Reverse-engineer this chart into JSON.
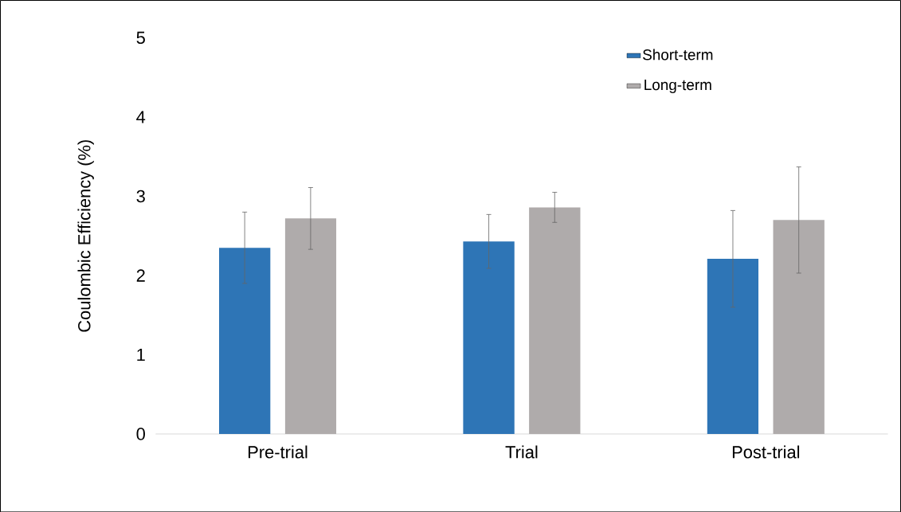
{
  "chart_data": {
    "type": "bar",
    "ylabel": "Coulombic Efficiency (%)",
    "categories": [
      "Pre-trial",
      "Trial",
      "Post-trial"
    ],
    "series": [
      {
        "name": "Short-term",
        "color": "#2e75b6",
        "values": [
          2.35,
          2.43,
          2.21
        ],
        "errors": [
          0.45,
          0.34,
          0.61
        ]
      },
      {
        "name": "Long-term",
        "color": "#afabab",
        "values": [
          2.72,
          2.86,
          2.7
        ],
        "errors": [
          0.39,
          0.19,
          0.67
        ]
      }
    ],
    "ylim": [
      0,
      5
    ],
    "yticks": [
      0,
      1,
      2,
      3,
      4,
      5
    ],
    "legend": "top right"
  }
}
